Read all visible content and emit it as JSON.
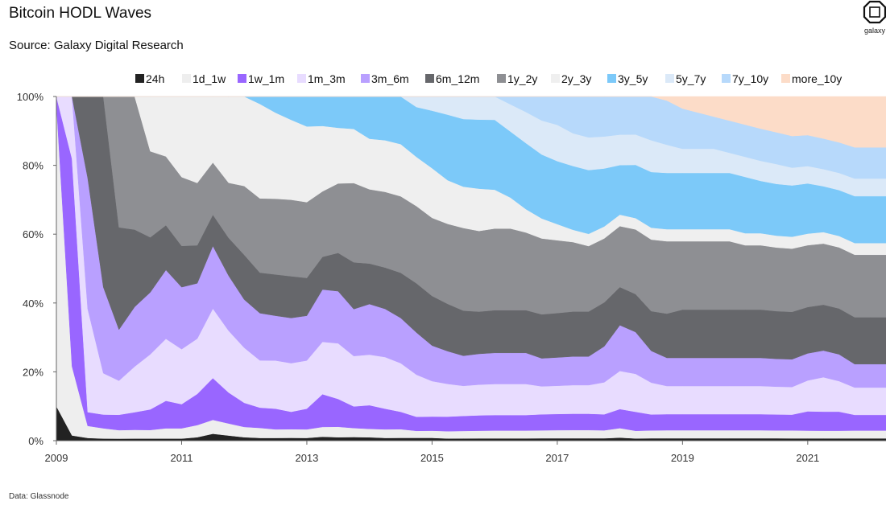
{
  "header": {
    "title": "Bitcoin HODL Waves",
    "subtitle": "Source: Galaxy Digital Research",
    "logo_text": "galaxy",
    "footer": "Data: Glassnode"
  },
  "chart_data": {
    "type": "area",
    "stacked": true,
    "normalized": true,
    "title": "Bitcoin HODL Waves",
    "xlabel": "",
    "ylabel": "",
    "xlim": [
      2009.0,
      2022.25
    ],
    "ylim": [
      0,
      100
    ],
    "x_ticks": [
      2009,
      2011,
      2013,
      2015,
      2017,
      2019,
      2021
    ],
    "x_tick_labels": [
      "2009",
      "2011",
      "2013",
      "2015",
      "2017",
      "2019",
      "2021"
    ],
    "y_ticks": [
      0,
      20,
      40,
      60,
      80,
      100
    ],
    "y_tick_labels": [
      "0%",
      "20%",
      "40%",
      "60%",
      "80%",
      "100%"
    ],
    "legend_position": "top",
    "x": [
      2009.0,
      2009.25,
      2009.5,
      2009.75,
      2010.0,
      2010.25,
      2010.5,
      2010.75,
      2011.0,
      2011.25,
      2011.5,
      2011.75,
      2012.0,
      2012.25,
      2012.5,
      2012.75,
      2013.0,
      2013.25,
      2013.5,
      2013.75,
      2014.0,
      2014.25,
      2014.5,
      2014.75,
      2015.0,
      2015.25,
      2015.5,
      2015.75,
      2016.0,
      2016.25,
      2016.5,
      2016.75,
      2017.0,
      2017.25,
      2017.5,
      2017.75,
      2018.0,
      2018.25,
      2018.5,
      2018.75,
      2019.0,
      2019.25,
      2019.5,
      2019.75,
      2020.0,
      2020.25,
      2020.5,
      2020.75,
      2021.0,
      2021.25,
      2021.5,
      2021.75,
      2022.0,
      2022.25
    ],
    "series": [
      {
        "name": "24h",
        "color": "#222222",
        "values": [
          10,
          1.5,
          0.8,
          0.6,
          0.6,
          0.6,
          0.6,
          0.6,
          0.6,
          1.0,
          2.0,
          1.5,
          1.0,
          0.8,
          0.8,
          0.8,
          0.8,
          1.2,
          1.0,
          1.0,
          1.0,
          0.8,
          0.8,
          0.8,
          0.8,
          0.6,
          0.6,
          0.6,
          0.6,
          0.6,
          0.6,
          0.6,
          0.6,
          0.6,
          0.6,
          0.6,
          0.8,
          0.6,
          0.6,
          0.6,
          0.6,
          0.6,
          0.6,
          0.6,
          0.6,
          0.6,
          0.6,
          0.6,
          0.6,
          0.6,
          0.6,
          0.6,
          0.6,
          0.6
        ]
      },
      {
        "name": "1d_1w",
        "color": "#eeeeee",
        "values": [
          88,
          20,
          3.5,
          3,
          2.5,
          2.5,
          2.5,
          3,
          3,
          3.5,
          4,
          3.5,
          3,
          3,
          2.5,
          2.5,
          2.5,
          3,
          3,
          2.5,
          2.5,
          2.5,
          2.5,
          2,
          2,
          2,
          2,
          2,
          2,
          2,
          2,
          2,
          2,
          2,
          2,
          2,
          2.5,
          2,
          2,
          2,
          2,
          2,
          2,
          2,
          2,
          2,
          2,
          2,
          2,
          2,
          2,
          2,
          2,
          2
        ]
      },
      {
        "name": "1w_1m",
        "color": "#9966ff",
        "values": [
          2,
          60,
          4,
          4,
          4.5,
          5,
          6,
          8,
          7,
          9,
          12,
          9,
          7,
          6,
          6,
          5,
          6,
          10,
          8,
          6,
          7,
          6,
          5,
          4,
          4,
          4,
          4,
          4,
          4,
          4,
          4,
          4,
          4,
          4,
          4,
          4,
          5,
          5,
          4,
          4,
          4,
          4,
          4,
          4,
          4,
          4,
          4,
          4,
          5,
          5,
          5,
          4,
          4,
          4
        ]
      },
      {
        "name": "1m_3m",
        "color": "#e8dcff",
        "values": [
          0,
          18,
          30,
          12,
          10,
          13,
          16,
          18,
          16,
          16,
          20,
          18,
          16,
          14,
          14,
          14,
          14,
          16,
          16,
          14,
          15,
          15,
          14,
          12,
          10,
          9,
          8,
          8,
          8,
          8,
          8,
          7,
          7,
          7,
          7,
          8,
          10,
          10,
          8,
          7,
          7,
          7,
          7,
          7,
          7,
          7,
          7,
          7,
          8,
          9,
          8,
          7,
          7,
          7
        ]
      },
      {
        "name": "3m_6m",
        "color": "#b9a0ff",
        "values": [
          0,
          0,
          38,
          25,
          15,
          17,
          18,
          20,
          18,
          16,
          18,
          16,
          14,
          14,
          13,
          13,
          13,
          16,
          15,
          13,
          15,
          14,
          13,
          12,
          10,
          9,
          8,
          8,
          8,
          8,
          8,
          7,
          7,
          7,
          7,
          9,
          12,
          11,
          8,
          7,
          7,
          7,
          7,
          7,
          7,
          7,
          7,
          7,
          7,
          7,
          7,
          6,
          6,
          6
        ]
      },
      {
        "name": "6m_12m",
        "color": "#66676b",
        "values": [
          0,
          0,
          23.7,
          55.4,
          30,
          22,
          16,
          13,
          12,
          11,
          9,
          11,
          13,
          12,
          12,
          12,
          11,
          10,
          11,
          13,
          12,
          12,
          13,
          14,
          14,
          13,
          12,
          11,
          11,
          11,
          11,
          11,
          11,
          11,
          11,
          11,
          10,
          10,
          10,
          11,
          12,
          12,
          12,
          12,
          12,
          12,
          12,
          12,
          12,
          12,
          12,
          12,
          12,
          12
        ]
      },
      {
        "name": "1y_2y",
        "color": "#8e8f93",
        "values": [
          0,
          0,
          0,
          0,
          38.4,
          37.9,
          25,
          20,
          20,
          18,
          15,
          16,
          20,
          22,
          22,
          22,
          22,
          20,
          20,
          22,
          22,
          22,
          22,
          22,
          22,
          22,
          22,
          21,
          21,
          21,
          20,
          19,
          18,
          17,
          16,
          16,
          16,
          17,
          18,
          18,
          17,
          17,
          17,
          17,
          16,
          16,
          16,
          16,
          16,
          16,
          16,
          16,
          16,
          16
        ]
      },
      {
        "name": "2y_3y",
        "color": "#efefef",
        "values": [
          0,
          0,
          0,
          0,
          0,
          0,
          15.9,
          17.4,
          23.4,
          25,
          19,
          25.1,
          26,
          28,
          25,
          23,
          22,
          20,
          16,
          15,
          15,
          15,
          15,
          14,
          14,
          12,
          11,
          11,
          10,
          8,
          6,
          5,
          4,
          3,
          3,
          3,
          3,
          3,
          3,
          3,
          3,
          3,
          3,
          3,
          3,
          3,
          3,
          3,
          3,
          3,
          3,
          3,
          3,
          3
        ]
      },
      {
        "name": "3y_5y",
        "color": "#7cc9f9",
        "values": [
          0,
          0,
          0,
          0,
          0,
          0,
          0,
          0,
          0,
          0,
          0,
          0,
          0,
          2.2,
          4.7,
          6.7,
          8.7,
          9,
          9,
          9,
          12.5,
          12.7,
          13.7,
          14.2,
          16.2,
          18,
          18,
          18,
          18,
          17,
          17,
          16,
          15.6,
          15.6,
          15.6,
          14.5,
          13,
          14,
          14,
          14,
          14,
          14,
          14,
          14,
          14,
          13,
          13,
          13,
          13,
          12,
          12,
          12,
          12,
          12
        ]
      },
      {
        "name": "5y_7y",
        "color": "#dbe9f8",
        "values": [
          0,
          0,
          0,
          0,
          0,
          0,
          0,
          0,
          0,
          0,
          0,
          0,
          0,
          0,
          0,
          0,
          0,
          0,
          0,
          0,
          0,
          0,
          0,
          3,
          4,
          5,
          6,
          6,
          6,
          7,
          8,
          8.5,
          9,
          8,
          8,
          8,
          8,
          8,
          8,
          7,
          6,
          6,
          6,
          5,
          5,
          5,
          5,
          4.5,
          4.5,
          4.5,
          4.5,
          4.5,
          4.5,
          4.5
        ]
      },
      {
        "name": "7y_10y",
        "color": "#b7d9fb",
        "values": [
          0,
          0,
          0,
          0,
          0,
          0,
          0,
          0,
          0,
          0,
          0,
          0,
          0,
          0,
          0,
          0,
          0,
          0,
          0,
          0,
          0,
          0,
          0,
          0,
          0,
          0,
          0,
          0,
          0,
          2,
          4,
          6,
          7,
          9,
          10,
          10,
          10,
          10,
          11,
          11,
          10,
          9,
          8,
          8,
          8,
          8,
          8,
          8,
          8,
          8,
          8,
          8,
          8,
          8
        ]
      },
      {
        "name": "more_10y",
        "color": "#fcdcc8",
        "values": [
          0,
          0,
          0,
          0,
          0,
          0,
          0,
          0,
          0,
          0,
          0,
          0,
          0,
          0,
          0,
          0,
          0,
          0,
          0,
          0,
          0,
          0,
          0,
          0,
          0,
          0,
          0,
          0,
          0,
          0,
          0,
          0,
          0,
          0,
          0,
          0,
          0,
          0,
          0,
          1,
          3,
          4,
          5,
          6,
          7,
          8,
          9,
          10,
          10,
          11,
          12,
          13,
          13,
          13
        ]
      }
    ]
  }
}
